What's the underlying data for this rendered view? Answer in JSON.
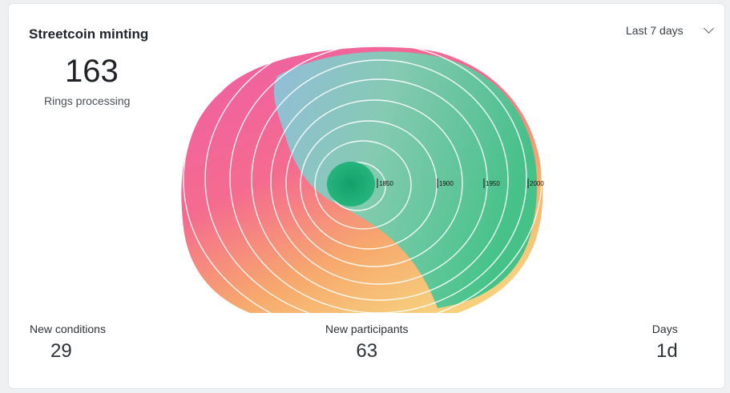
{
  "widget": {
    "title": "Streetcoin minting",
    "headline_value": "163",
    "headline_label": "Rings processing",
    "range_select": {
      "selected": "Last 7 days",
      "icon": "chevron-down-icon"
    }
  },
  "visual": {
    "year_markers": [
      "1850",
      "1900",
      "1950",
      "2000"
    ]
  },
  "stats": [
    {
      "label": "New conditions",
      "value": "29"
    },
    {
      "label": "New participants",
      "value": "63"
    },
    {
      "label": "Days",
      "value": "1d"
    }
  ]
}
